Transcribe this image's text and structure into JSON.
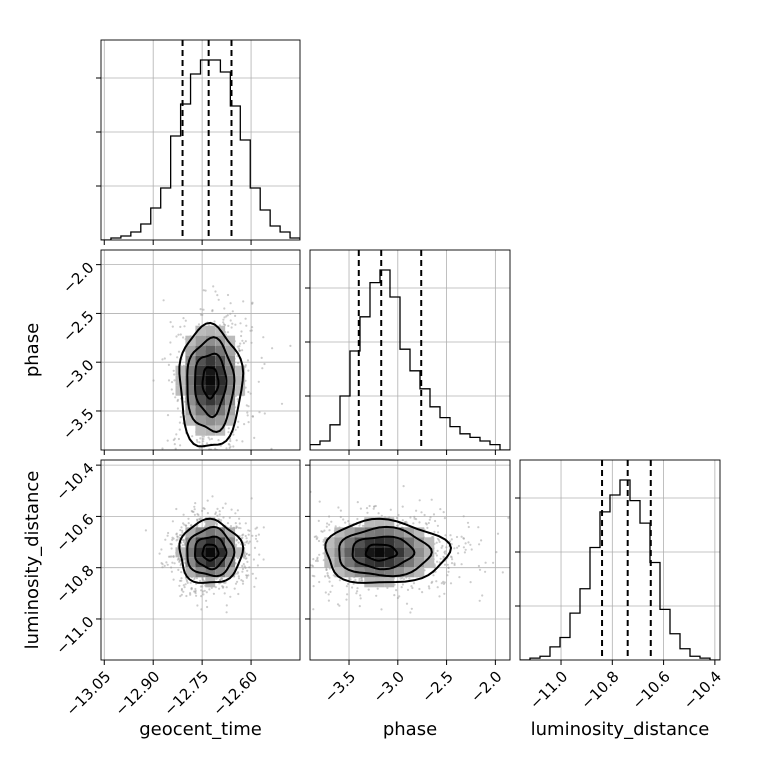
{
  "chart_data": {
    "type": "corner",
    "parameters": [
      "geocent_time",
      "phase",
      "luminosity_distance"
    ],
    "axis_labels": {
      "x": [
        "geocent_time",
        "phase",
        "luminosity_distance"
      ],
      "y": [
        "phase",
        "luminosity_distance"
      ]
    },
    "ranges": {
      "geocent_time": [
        -13.06,
        -12.45
      ],
      "phase": [
        -3.9,
        -1.85
      ],
      "luminosity_distance": [
        -11.16,
        -10.38
      ]
    },
    "ticks": {
      "geocent_time": [
        -13.05,
        -12.9,
        -12.75,
        -12.6
      ],
      "phase": [
        -3.5,
        -3.0,
        -2.5,
        -2.0
      ],
      "luminosity_distance": [
        -11.0,
        -10.8,
        -10.6,
        -10.4
      ]
    },
    "tick_labels": {
      "geocent_time": [
        "−13.05",
        "−12.90",
        "−12.75",
        "−12.60"
      ],
      "phase": [
        "−3.5",
        "−3.0",
        "−2.5",
        "−2.0"
      ],
      "luminosity_distance": [
        "−11.0",
        "−10.8",
        "−10.6",
        "−10.4"
      ]
    },
    "quantiles": {
      "geocent_time": [
        -12.81,
        -12.73,
        -12.66
      ],
      "phase": [
        -3.4,
        -3.17,
        -2.76
      ],
      "luminosity_distance": [
        -10.84,
        -10.74,
        -10.65
      ]
    },
    "histograms": {
      "geocent_time": {
        "edges": [
          -13.06,
          -12.45
        ],
        "counts": [
          0,
          1,
          2,
          4,
          8,
          16,
          26,
          52,
          68,
          83,
          90,
          90,
          84,
          67,
          50,
          26,
          15,
          7,
          4,
          1
        ]
      },
      "phase": {
        "edges": [
          -3.9,
          -1.85
        ],
        "counts": [
          3,
          5,
          14,
          30,
          55,
          74,
          93,
          100,
          85,
          56,
          44,
          34,
          24,
          18,
          13,
          9,
          7,
          5,
          3,
          0
        ]
      },
      "luminosity_distance": {
        "edges": [
          -11.16,
          -10.38
        ],
        "counts": [
          0,
          1,
          2,
          7,
          12,
          25,
          38,
          60,
          79,
          88,
          96,
          85,
          73,
          52,
          27,
          14,
          6,
          2,
          1,
          0
        ]
      }
    },
    "posterior_2d": {
      "means": {
        "geocent_time": -12.725,
        "phase": -3.19,
        "luminosity_distance": -10.74
      },
      "stds": {
        "geocent_time": 0.048,
        "phase": 0.28,
        "luminosity_distance": 0.062
      }
    },
    "grid": true
  }
}
